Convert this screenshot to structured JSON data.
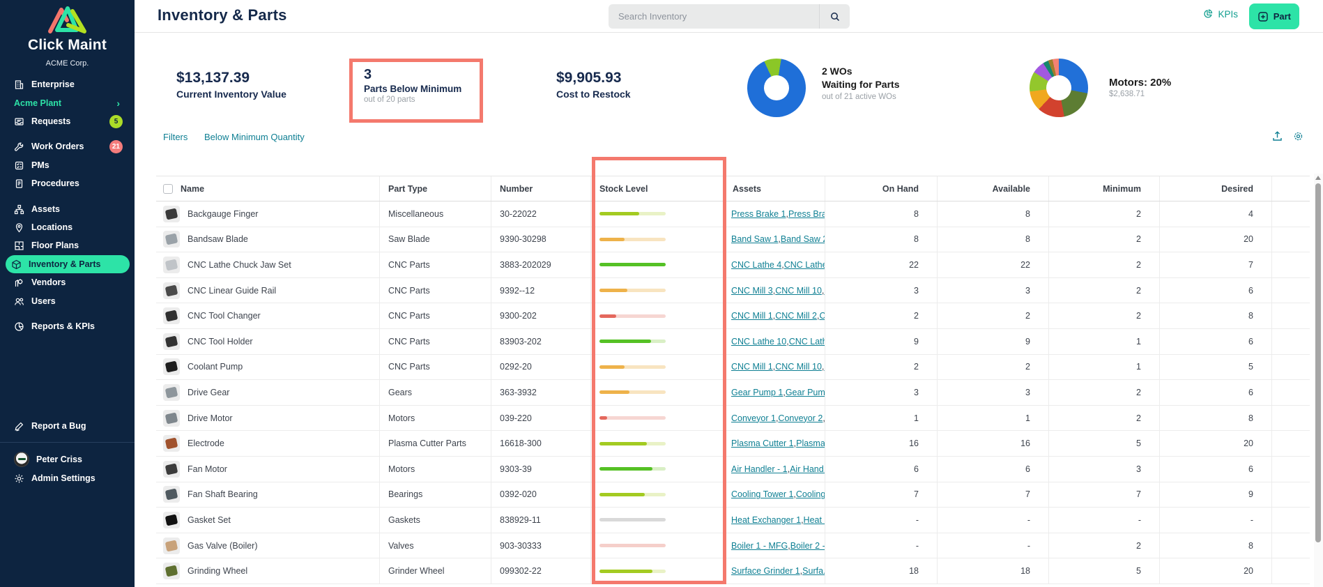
{
  "colors": {
    "sidebar_bg": "#0d2440",
    "accent_green": "#2de3a7",
    "annotation_salmon": "#f4796d",
    "link_teal": "#0e7f93",
    "kpis_teal": "#119e8f",
    "title_navy": "#15294a"
  },
  "sidebar": {
    "brand": {
      "name": "Click Maint",
      "org": "ACME Corp."
    },
    "items": [
      {
        "label": "Enterprise"
      },
      {
        "label": "Acme Plant"
      },
      {
        "label": "Requests",
        "badge": "5"
      },
      {
        "label": "Work Orders",
        "badge": "21"
      },
      {
        "label": "PMs"
      },
      {
        "label": "Procedures"
      },
      {
        "label": "Assets"
      },
      {
        "label": "Locations"
      },
      {
        "label": "Floor Plans"
      },
      {
        "label": "Inventory & Parts"
      },
      {
        "label": "Vendors"
      },
      {
        "label": "Users"
      },
      {
        "label": "Reports & KPIs"
      }
    ],
    "footer": {
      "report_bug": "Report a Bug",
      "user": "Peter Criss",
      "admin": "Admin Settings"
    }
  },
  "header": {
    "title": "Inventory & Parts",
    "search_placeholder": "Search Inventory",
    "kpis_label": "KPIs",
    "add_part_label": "Part"
  },
  "stats": {
    "inventory_value": {
      "value": "$13,137.39",
      "label": "Current Inventory Value"
    },
    "below_minimum": {
      "value": "3",
      "label": "Parts Below Minimum",
      "sub": "out of 20 parts"
    },
    "cost_to_restock": {
      "value": "$9,905.93",
      "label": "Cost to Restock"
    },
    "waiting_wos": {
      "value": "2 WOs",
      "label": "Waiting for Parts",
      "sub": "out of 21 active WOs",
      "donut": {
        "from": -25,
        "segments": [
          {
            "color": "#8bc727",
            "pct": 9.5
          },
          {
            "color": "#1f6fd8",
            "pct": 90.5
          }
        ]
      }
    },
    "category_value": {
      "label": "Motors: 20%",
      "sub": "$2,638.71",
      "donut": {
        "from": 0,
        "segments": [
          {
            "color": "#2170d8",
            "pct": 28
          },
          {
            "color": "#5d7d33",
            "pct": 19
          },
          {
            "color": "#d2422e",
            "pct": 15
          },
          {
            "color": "#f0a81e",
            "pct": 11
          },
          {
            "color": "#93c72c",
            "pct": 11
          },
          {
            "color": "#a259e0",
            "pct": 7
          },
          {
            "color": "#15876d",
            "pct": 3
          },
          {
            "color": "#a07d2c",
            "pct": 2.5
          },
          {
            "color": "#f48273",
            "pct": 3.5
          }
        ]
      }
    }
  },
  "filters": {
    "link_filters": "Filters",
    "link_below_min": "Below Minimum Quantity"
  },
  "table": {
    "columns": [
      "Name",
      "Part Type",
      "Number",
      "Stock Level",
      "Assets",
      "On Hand",
      "Available",
      "Minimum",
      "Desired"
    ],
    "stock_colors": {
      "green": {
        "fill": "#55c125",
        "track": "#d9efc5"
      },
      "lime": {
        "fill": "#a3cb21",
        "track": "#e9f2c6"
      },
      "amber": {
        "fill": "#eeb24a",
        "track": "#f8e4c0"
      },
      "red": {
        "fill": "#e4685d",
        "track": "#f6d6d2"
      },
      "grey": {
        "fill": "#cccccc",
        "track": "#d9d9d9"
      },
      "pink": {
        "fill": "#f5cfca",
        "track": "#f5cfca"
      }
    },
    "rows": [
      {
        "name": "Backgauge Finger",
        "part_type": "Miscellaneous",
        "number": "30-22022",
        "stock": {
          "status": "lime",
          "pct": 60
        },
        "assets": [
          "Press Brake 1",
          "Press Bra..."
        ],
        "on_hand": "8",
        "available": "8",
        "minimum": "2",
        "desired": "4",
        "thumb": "#3a3a3a"
      },
      {
        "name": "Bandsaw Blade",
        "part_type": "Saw Blade",
        "number": "9390-30298",
        "stock": {
          "status": "amber",
          "pct": 38
        },
        "assets": [
          "Band Saw 1",
          "Band Saw 2..."
        ],
        "on_hand": "8",
        "available": "8",
        "minimum": "2",
        "desired": "20",
        "thumb": "#9aa2a8"
      },
      {
        "name": "CNC Lathe Chuck Jaw Set",
        "part_type": "CNC Parts",
        "number": "3883-202029",
        "stock": {
          "status": "green",
          "pct": 100
        },
        "assets": [
          "CNC Lathe 4",
          "CNC Lathe ..."
        ],
        "on_hand": "22",
        "available": "22",
        "minimum": "2",
        "desired": "7",
        "thumb": "#c0c4c8"
      },
      {
        "name": "CNC Linear Guide Rail",
        "part_type": "CNC Parts",
        "number": "9392--12",
        "stock": {
          "status": "amber",
          "pct": 42
        },
        "assets": [
          "CNC Mill 3",
          "CNC Mill 10",
          "..."
        ],
        "on_hand": "3",
        "available": "3",
        "minimum": "2",
        "desired": "6",
        "thumb": "#4a4a4a"
      },
      {
        "name": "CNC Tool Changer",
        "part_type": "CNC Parts",
        "number": "9300-202",
        "stock": {
          "status": "red",
          "pct": 25
        },
        "assets": [
          "CNC Mill 1",
          "CNC Mill 2",
          "C..."
        ],
        "on_hand": "2",
        "available": "2",
        "minimum": "2",
        "desired": "8",
        "thumb": "#2f2f2f"
      },
      {
        "name": "CNC Tool Holder",
        "part_type": "CNC Parts",
        "number": "83903-202",
        "stock": {
          "status": "green",
          "pct": 78
        },
        "assets": [
          "CNC Lathe 10",
          "CNC Lath..."
        ],
        "on_hand": "9",
        "available": "9",
        "minimum": "1",
        "desired": "6",
        "thumb": "#333333"
      },
      {
        "name": "Coolant Pump",
        "part_type": "CNC Parts",
        "number": "0292-20",
        "stock": {
          "status": "amber",
          "pct": 38
        },
        "assets": [
          "CNC Mill 1",
          "CNC Mill 10",
          "..."
        ],
        "on_hand": "2",
        "available": "2",
        "minimum": "1",
        "desired": "5",
        "thumb": "#1e1e1e"
      },
      {
        "name": "Drive Gear",
        "part_type": "Gears",
        "number": "363-3932",
        "stock": {
          "status": "amber",
          "pct": 45
        },
        "assets": [
          "Gear Pump 1",
          "Gear Pum..."
        ],
        "on_hand": "3",
        "available": "3",
        "minimum": "2",
        "desired": "6",
        "thumb": "#8e969c"
      },
      {
        "name": "Drive Motor",
        "part_type": "Motors",
        "number": "039-220",
        "stock": {
          "status": "red",
          "pct": 12
        },
        "assets": [
          "Conveyor 1",
          "Conveyor 2",
          "..."
        ],
        "on_hand": "1",
        "available": "1",
        "minimum": "2",
        "desired": "8",
        "thumb": "#7f878d"
      },
      {
        "name": "Electrode",
        "part_type": "Plasma Cutter Parts",
        "number": "16618-300",
        "stock": {
          "status": "lime",
          "pct": 72
        },
        "assets": [
          "Plasma Cutter 1",
          "Plasma ..."
        ],
        "on_hand": "16",
        "available": "16",
        "minimum": "5",
        "desired": "20",
        "thumb": "#a0522d"
      },
      {
        "name": "Fan Motor",
        "part_type": "Motors",
        "number": "9303-39",
        "stock": {
          "status": "green",
          "pct": 80
        },
        "assets": [
          "Air Handler - 1 ",
          "Air Hand..."
        ],
        "on_hand": "6",
        "available": "6",
        "minimum": "3",
        "desired": "6",
        "thumb": "#3c3c3c"
      },
      {
        "name": "Fan Shaft Bearing",
        "part_type": "Bearings",
        "number": "0392-020",
        "stock": {
          "status": "lime",
          "pct": 68
        },
        "assets": [
          "Cooling Tower 1",
          "Cooling..."
        ],
        "on_hand": "7",
        "available": "7",
        "minimum": "7",
        "desired": "9",
        "thumb": "#505a60"
      },
      {
        "name": "Gasket Set",
        "part_type": "Gaskets",
        "number": "838929-11",
        "stock": {
          "status": "grey",
          "pct": 0
        },
        "assets": [
          "Heat Exchanger 1",
          "Heat ..."
        ],
        "on_hand": "-",
        "available": "-",
        "minimum": "-",
        "desired": "-",
        "thumb": "#111111"
      },
      {
        "name": "Gas Valve (Boiler)",
        "part_type": "Valves",
        "number": "903-30333",
        "stock": {
          "status": "pink",
          "pct": 0
        },
        "assets": [
          "Boiler 1 - MFG",
          "Boiler 2 - ..."
        ],
        "on_hand": "-",
        "available": "-",
        "minimum": "2",
        "desired": "8",
        "thumb": "#c8a27a"
      },
      {
        "name": "Grinding Wheel",
        "part_type": "Grinder Wheel",
        "number": "099302-22",
        "stock": {
          "status": "lime",
          "pct": 80
        },
        "assets": [
          "Surface Grinder 1",
          "Surfa..."
        ],
        "on_hand": "18",
        "available": "18",
        "minimum": "5",
        "desired": "20",
        "thumb": "#5f7030"
      }
    ]
  }
}
